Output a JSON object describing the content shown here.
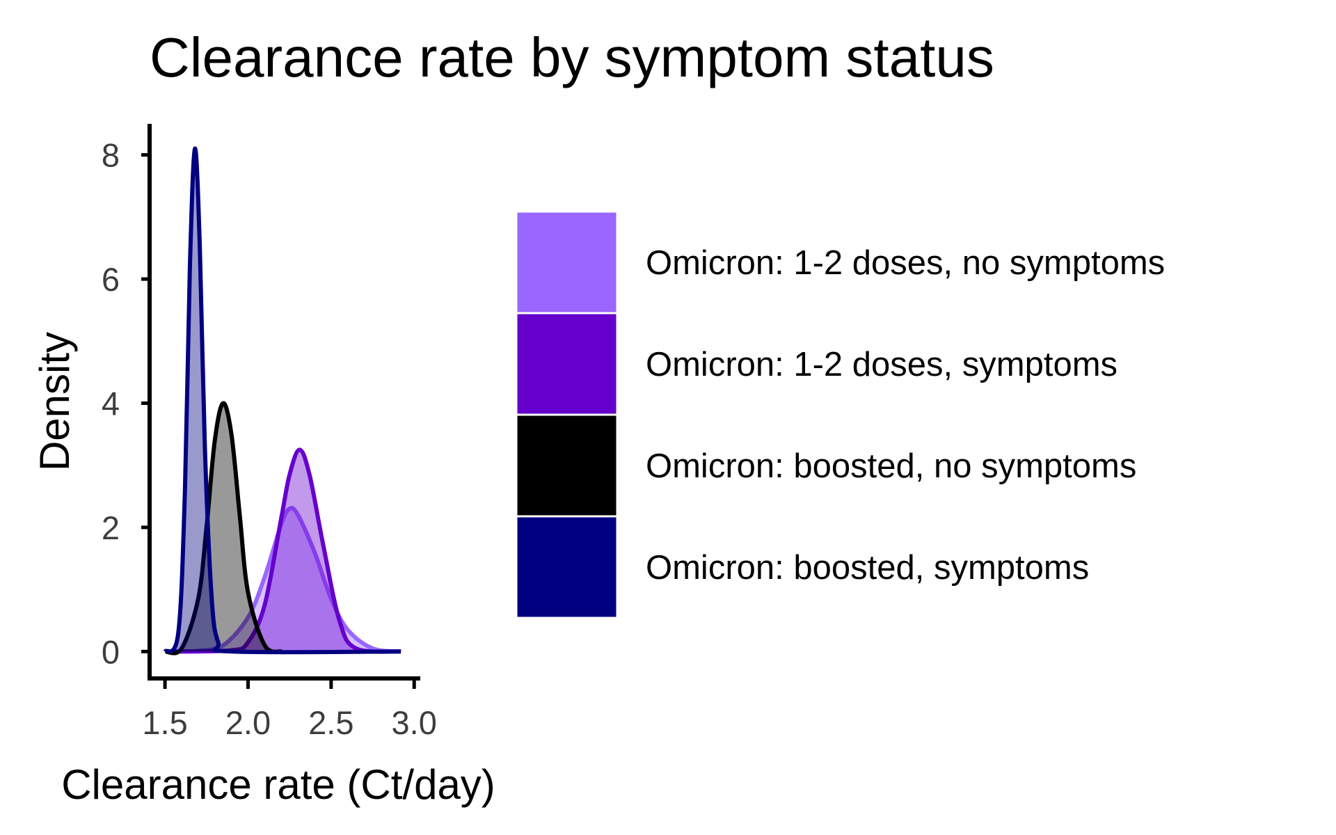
{
  "chart_data": {
    "type": "area",
    "title": "Clearance rate by symptom status",
    "xlabel": "Clearance rate (Ct/day)",
    "ylabel": "Density",
    "xlim": [
      1.42,
      3.02
    ],
    "ylim": [
      -0.4,
      8.5
    ],
    "x_ticks": [
      "1.5",
      "2.0",
      "2.5",
      "3.0"
    ],
    "x_tick_values": [
      1.5,
      2.0,
      2.5,
      3.0
    ],
    "y_ticks": [
      "0",
      "2",
      "4",
      "6",
      "8"
    ],
    "y_tick_values": [
      0,
      2,
      4,
      6,
      8
    ],
    "grid": false,
    "legend_position": "right",
    "series": [
      {
        "name": "Omicron: 1-2 doses, no symptoms",
        "color": "#9966ff",
        "peak_x": 2.25,
        "peak_density": 2.3,
        "x": [
          1.55,
          1.7,
          1.85,
          2.0,
          2.1,
          2.2,
          2.25,
          2.3,
          2.4,
          2.5,
          2.6,
          2.75,
          2.92
        ],
        "density": [
          0.0,
          0.01,
          0.1,
          0.55,
          1.2,
          2.05,
          2.3,
          2.2,
          1.6,
          0.85,
          0.35,
          0.05,
          0.0
        ]
      },
      {
        "name": "Omicron: 1-2 doses, symptoms",
        "color": "#6600cc",
        "peak_x": 2.31,
        "peak_density": 3.25,
        "x": [
          1.55,
          1.9,
          2.0,
          2.1,
          2.2,
          2.25,
          2.31,
          2.37,
          2.45,
          2.55,
          2.65,
          2.92
        ],
        "density": [
          0.0,
          0.02,
          0.15,
          0.75,
          2.15,
          2.85,
          3.25,
          2.85,
          1.75,
          0.5,
          0.05,
          0.0
        ]
      },
      {
        "name": "Omicron: boosted, no symptoms",
        "color": "#000000",
        "peak_x": 1.85,
        "peak_density": 4.0,
        "x": [
          1.5,
          1.6,
          1.7,
          1.75,
          1.8,
          1.85,
          1.9,
          1.95,
          2.0,
          2.1,
          2.2
        ],
        "density": [
          0.0,
          0.05,
          0.85,
          2.0,
          3.4,
          4.0,
          3.5,
          2.2,
          0.95,
          0.1,
          0.0
        ]
      },
      {
        "name": "Omicron: boosted, symptoms",
        "color": "#000080",
        "peak_x": 1.68,
        "peak_density": 8.1,
        "x": [
          1.5,
          1.58,
          1.62,
          1.65,
          1.68,
          1.71,
          1.74,
          1.78,
          1.82,
          1.9,
          2.92
        ],
        "density": [
          0.0,
          0.3,
          2.6,
          6.2,
          8.1,
          6.5,
          3.3,
          0.9,
          0.15,
          0.0,
          0.0
        ]
      }
    ]
  }
}
